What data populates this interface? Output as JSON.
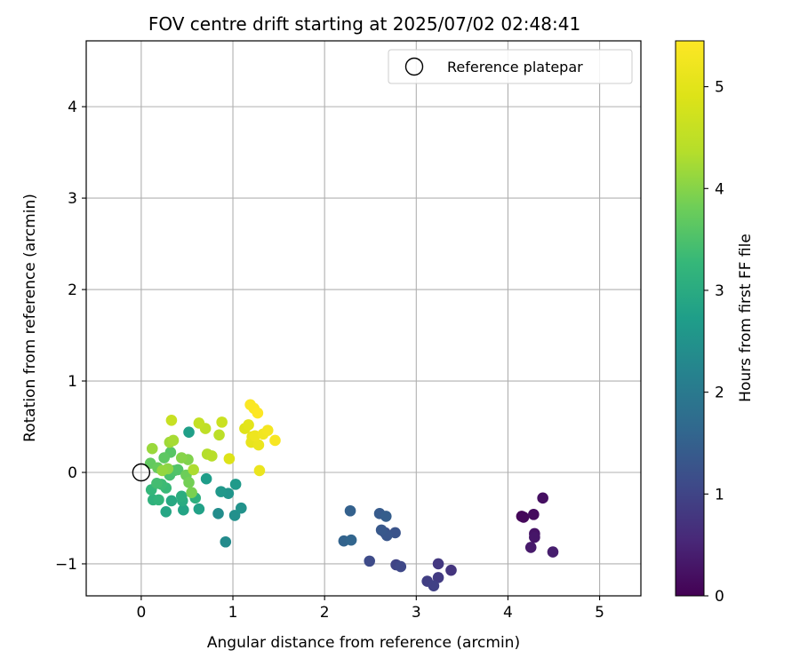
{
  "chart_data": {
    "type": "scatter",
    "title": "FOV centre drift starting at 2025/07/02 02:48:41",
    "xlabel": "Angular distance from reference (arcmin)",
    "ylabel": "Rotation from reference (arcmin)",
    "xlim": [
      -0.6,
      5.45
    ],
    "ylim": [
      -1.35,
      4.72
    ],
    "xticks": [
      0,
      1,
      2,
      3,
      4,
      5
    ],
    "yticks": [
      -1,
      0,
      1,
      2,
      3,
      4
    ],
    "xtick_labels": [
      "0",
      "1",
      "2",
      "3",
      "4",
      "5"
    ],
    "ytick_labels": [
      "−1",
      "0",
      "1",
      "2",
      "3",
      "4"
    ],
    "grid": true,
    "legend": {
      "position": "top-right",
      "entries": [
        "Reference platepar"
      ]
    },
    "reference_point": {
      "x": 0,
      "y": 0
    },
    "colorbar": {
      "label": "Hours from first FF file",
      "colormap": "viridis",
      "range": [
        0,
        5.45
      ],
      "ticks": [
        0,
        1,
        2,
        3,
        4,
        5
      ],
      "tick_labels": [
        "0",
        "1",
        "2",
        "3",
        "4",
        "5"
      ]
    },
    "points": [
      {
        "x": 4.15,
        "y": -0.48,
        "t": 0.05
      },
      {
        "x": 4.17,
        "y": -0.49,
        "t": 0.1
      },
      {
        "x": 4.28,
        "y": -0.46,
        "t": 0.15
      },
      {
        "x": 4.38,
        "y": -0.28,
        "t": 0.2
      },
      {
        "x": 4.29,
        "y": -0.67,
        "t": 0.25
      },
      {
        "x": 4.29,
        "y": -0.71,
        "t": 0.3
      },
      {
        "x": 4.25,
        "y": -0.82,
        "t": 0.35
      },
      {
        "x": 4.49,
        "y": -0.87,
        "t": 0.4
      },
      {
        "x": 3.38,
        "y": -1.07,
        "t": 0.75
      },
      {
        "x": 3.24,
        "y": -1.0,
        "t": 0.8
      },
      {
        "x": 3.24,
        "y": -1.15,
        "t": 0.85
      },
      {
        "x": 3.12,
        "y": -1.19,
        "t": 0.9
      },
      {
        "x": 3.19,
        "y": -1.24,
        "t": 0.95
      },
      {
        "x": 2.78,
        "y": -1.01,
        "t": 1.0
      },
      {
        "x": 2.83,
        "y": -1.03,
        "t": 1.05
      },
      {
        "x": 2.49,
        "y": -0.97,
        "t": 1.1
      },
      {
        "x": 2.66,
        "y": -0.66,
        "t": 1.2
      },
      {
        "x": 2.77,
        "y": -0.66,
        "t": 1.25
      },
      {
        "x": 2.68,
        "y": -0.69,
        "t": 1.3
      },
      {
        "x": 2.62,
        "y": -0.63,
        "t": 1.35
      },
      {
        "x": 2.6,
        "y": -0.45,
        "t": 1.4
      },
      {
        "x": 2.67,
        "y": -0.48,
        "t": 1.45
      },
      {
        "x": 2.28,
        "y": -0.42,
        "t": 1.5
      },
      {
        "x": 2.21,
        "y": -0.75,
        "t": 1.55
      },
      {
        "x": 2.29,
        "y": -0.74,
        "t": 1.6
      },
      {
        "x": 0.92,
        "y": -0.76,
        "t": 2.35
      },
      {
        "x": 0.84,
        "y": -0.45,
        "t": 2.4
      },
      {
        "x": 1.02,
        "y": -0.47,
        "t": 2.45
      },
      {
        "x": 1.09,
        "y": -0.39,
        "t": 2.5
      },
      {
        "x": 0.95,
        "y": -0.23,
        "t": 2.55
      },
      {
        "x": 0.87,
        "y": -0.21,
        "t": 2.6
      },
      {
        "x": 1.03,
        "y": -0.13,
        "t": 2.65
      },
      {
        "x": 0.71,
        "y": -0.07,
        "t": 2.7
      },
      {
        "x": 0.52,
        "y": 0.44,
        "t": 2.75
      },
      {
        "x": 0.63,
        "y": -0.4,
        "t": 2.8
      },
      {
        "x": 0.46,
        "y": -0.41,
        "t": 2.85
      },
      {
        "x": 0.27,
        "y": -0.43,
        "t": 2.9
      },
      {
        "x": 0.33,
        "y": -0.31,
        "t": 2.95
      },
      {
        "x": 0.45,
        "y": -0.31,
        "t": 3.0
      },
      {
        "x": 0.44,
        "y": -0.26,
        "t": 3.05
      },
      {
        "x": 0.59,
        "y": -0.28,
        "t": 3.1
      },
      {
        "x": 0.13,
        "y": -0.3,
        "t": 3.15
      },
      {
        "x": 0.19,
        "y": -0.3,
        "t": 3.2
      },
      {
        "x": 0.11,
        "y": -0.19,
        "t": 3.25
      },
      {
        "x": 0.27,
        "y": -0.17,
        "t": 3.3
      },
      {
        "x": 0.22,
        "y": -0.13,
        "t": 3.35
      },
      {
        "x": 0.17,
        "y": -0.12,
        "t": 3.4
      },
      {
        "x": 0.31,
        "y": -0.03,
        "t": 3.45
      },
      {
        "x": 0.36,
        "y": 0.02,
        "t": 3.5
      },
      {
        "x": 0.4,
        "y": 0.03,
        "t": 3.55
      },
      {
        "x": 0.32,
        "y": 0.22,
        "t": 3.6
      },
      {
        "x": 0.25,
        "y": 0.16,
        "t": 3.65
      },
      {
        "x": 0.1,
        "y": 0.1,
        "t": 3.7
      },
      {
        "x": 0.18,
        "y": 0.05,
        "t": 3.75
      },
      {
        "x": 0.49,
        "y": -0.03,
        "t": 3.8
      },
      {
        "x": 0.52,
        "y": -0.11,
        "t": 3.85
      },
      {
        "x": 0.55,
        "y": -0.22,
        "t": 3.9
      },
      {
        "x": 0.51,
        "y": 0.14,
        "t": 3.95
      },
      {
        "x": 0.44,
        "y": 0.16,
        "t": 4.0
      },
      {
        "x": 0.29,
        "y": 0.04,
        "t": 4.05
      },
      {
        "x": 0.23,
        "y": 0.02,
        "t": 4.1
      },
      {
        "x": 0.12,
        "y": 0.26,
        "t": 4.15
      },
      {
        "x": 0.31,
        "y": 0.33,
        "t": 4.2
      },
      {
        "x": 0.35,
        "y": 0.35,
        "t": 4.25
      },
      {
        "x": 0.57,
        "y": 0.03,
        "t": 4.3
      },
      {
        "x": 0.72,
        "y": 0.2,
        "t": 4.35
      },
      {
        "x": 0.77,
        "y": 0.18,
        "t": 4.4
      },
      {
        "x": 0.85,
        "y": 0.41,
        "t": 4.45
      },
      {
        "x": 0.7,
        "y": 0.48,
        "t": 4.5
      },
      {
        "x": 0.63,
        "y": 0.54,
        "t": 4.55
      },
      {
        "x": 0.33,
        "y": 0.57,
        "t": 4.6
      },
      {
        "x": 0.88,
        "y": 0.55,
        "t": 4.65
      },
      {
        "x": 0.96,
        "y": 0.15,
        "t": 4.9
      },
      {
        "x": 1.13,
        "y": 0.48,
        "t": 4.95
      },
      {
        "x": 1.17,
        "y": 0.52,
        "t": 5.0
      },
      {
        "x": 1.21,
        "y": 0.39,
        "t": 5.05
      },
      {
        "x": 1.2,
        "y": 0.33,
        "t": 5.1
      },
      {
        "x": 1.28,
        "y": 0.3,
        "t": 5.15
      },
      {
        "x": 1.29,
        "y": 0.02,
        "t": 5.15
      },
      {
        "x": 1.24,
        "y": 0.4,
        "t": 5.2
      },
      {
        "x": 1.33,
        "y": 0.42,
        "t": 5.25
      },
      {
        "x": 1.38,
        "y": 0.46,
        "t": 5.3
      },
      {
        "x": 1.46,
        "y": 0.35,
        "t": 5.35
      },
      {
        "x": 1.19,
        "y": 0.74,
        "t": 5.4
      },
      {
        "x": 1.23,
        "y": 0.7,
        "t": 5.4
      },
      {
        "x": 1.27,
        "y": 0.65,
        "t": 5.45
      }
    ]
  }
}
